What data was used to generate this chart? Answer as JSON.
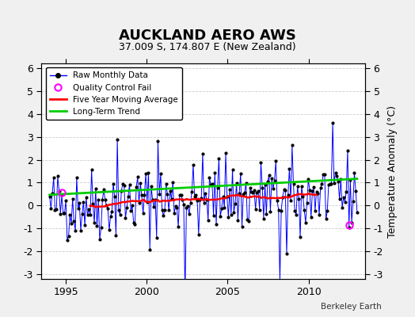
{
  "title": "AUCKLAND AERO AWS",
  "subtitle": "37.009 S, 174.807 E (New Zealand)",
  "ylabel": "Temperature Anomaly (°C)",
  "attribution": "Berkeley Earth",
  "ylim": [
    -3.2,
    6.2
  ],
  "xlim": [
    1993.5,
    2013.5
  ],
  "yticks": [
    -3,
    -2,
    -1,
    0,
    1,
    2,
    3,
    4,
    5,
    6
  ],
  "xticks": [
    1995,
    2000,
    2005,
    2010
  ],
  "bg_color": "#f0f0f0",
  "plot_bg_color": "#ffffff",
  "raw_color": "#0000ff",
  "ma_color": "#ff0000",
  "trend_color": "#00cc00",
  "qc_color": "#ff00ff",
  "qc_times": [
    1994.75,
    2012.5
  ],
  "qc_values": [
    0.55,
    -0.85
  ],
  "seed": 42
}
